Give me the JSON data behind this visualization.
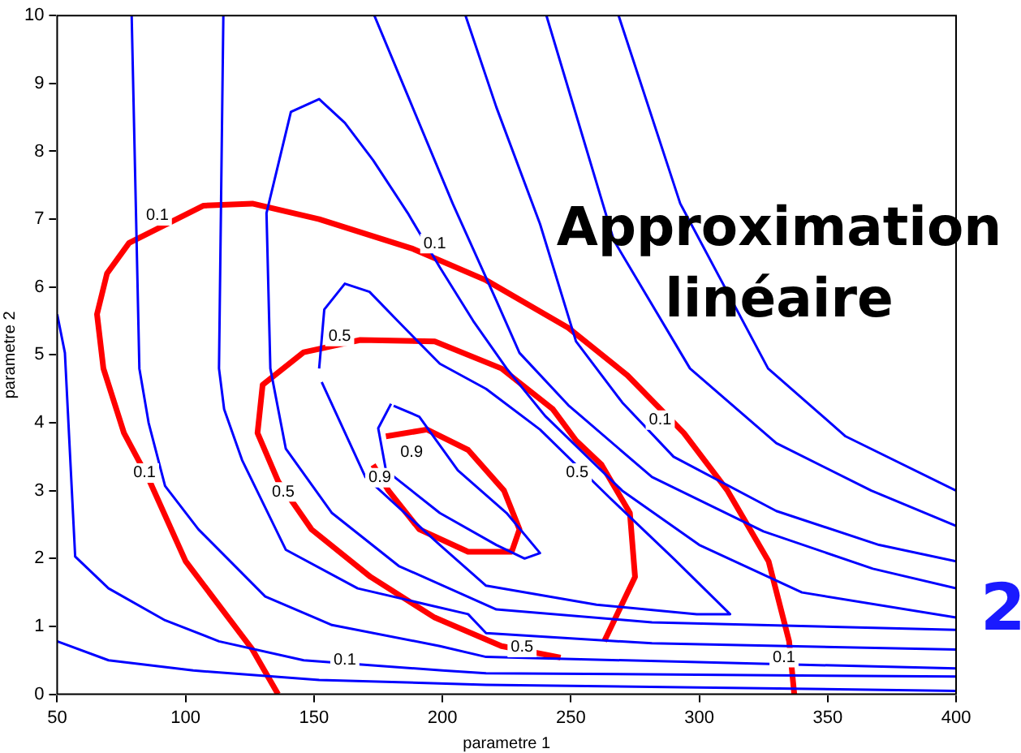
{
  "chart_data": {
    "type": "line",
    "xlabel": "parametre 1",
    "ylabel": "parametre 2",
    "xlim": [
      50,
      400
    ],
    "ylim": [
      0,
      10
    ],
    "xticks": [
      50,
      100,
      150,
      200,
      250,
      300,
      350,
      400
    ],
    "yticks": [
      0,
      1,
      2,
      3,
      4,
      5,
      6,
      7,
      8,
      9,
      10
    ],
    "grid": false,
    "legend": false,
    "marker": "none",
    "line_style": "solid",
    "series": [
      {
        "color": "#0000ff",
        "x": [
          50,
          70,
          103,
          152,
          217,
          400
        ],
        "values": [
          0.78,
          0.5,
          0.35,
          0.21,
          0.14,
          0.05
        ]
      },
      {
        "color": "#0000ff",
        "x": [
          50,
          53,
          57,
          70,
          92,
          113,
          146,
          200,
          217,
          400
        ],
        "values": [
          5.6,
          5.03,
          2.03,
          1.56,
          1.09,
          0.78,
          0.5,
          0.35,
          0.31,
          0.26
        ]
      },
      {
        "color": "#0000ff",
        "x": [
          79,
          82,
          85.6,
          92,
          105,
          131,
          157,
          199,
          217,
          400
        ],
        "values": [
          10,
          4.8,
          4.0,
          3.07,
          2.43,
          1.44,
          1.02,
          0.71,
          0.55,
          0.38
        ]
      },
      {
        "color": "#0000ff",
        "x": [
          114.7,
          113,
          115,
          122,
          139,
          167,
          210,
          217,
          281.6,
          400
        ],
        "values": [
          10,
          4.8,
          4.2,
          3.45,
          2.13,
          1.56,
          1.18,
          0.9,
          0.75,
          0.66
        ]
      },
      {
        "color": "#0000ff",
        "x": [
          400,
          281.6,
          221,
          183,
          157,
          139,
          133,
          131.5,
          141,
          152,
          162,
          173,
          186.5,
          199,
          212,
          225,
          240,
          270,
          300,
          340,
          400
        ],
        "values": [
          0.95,
          1.06,
          1.25,
          1.89,
          2.67,
          3.62,
          4.8,
          7.09,
          8.58,
          8.77,
          8.42,
          7.87,
          7.09,
          6.29,
          5.5,
          4.8,
          4.1,
          3.0,
          2.2,
          1.5,
          1.13
        ]
      },
      {
        "color": "#0000ff",
        "x": [
          173.5,
          186.5,
          204,
          221,
          230,
          249,
          281.6,
          325,
          367.6,
          400
        ],
        "values": [
          10,
          8.82,
          7.23,
          5.8,
          5.03,
          4.26,
          3.2,
          2.4,
          1.85,
          1.56
        ]
      },
      {
        "color": "#0000ff",
        "x": [
          209,
          221,
          238,
          252,
          270,
          290,
          330,
          370,
          400
        ],
        "values": [
          10,
          8.65,
          6.93,
          5.2,
          4.3,
          3.5,
          2.7,
          2.2,
          1.96
        ]
      },
      {
        "color": "#0000ff",
        "x": [
          240.5,
          266.7,
          296.4,
          330,
          367,
          400
        ],
        "values": [
          10,
          6.69,
          4.8,
          3.7,
          3.0,
          2.48
        ]
      },
      {
        "color": "#0000ff",
        "x": [
          268.6,
          292.6,
          326.8,
          357,
          400
        ],
        "values": [
          10,
          7.23,
          4.8,
          3.8,
          3.0
        ]
      },
      {
        "color": "#0000ff",
        "x": [
          152,
          154,
          162,
          171.6,
          182.6,
          199,
          217,
          238,
          265,
          290,
          312,
          299,
          260,
          217,
          199,
          170,
          153
        ],
        "values": [
          4.8,
          5.67,
          6.05,
          5.93,
          5.5,
          4.87,
          4.5,
          3.9,
          2.9,
          2.0,
          1.18,
          1.18,
          1.32,
          1.6,
          2.2,
          3.2,
          4.6
        ]
      },
      {
        "color": "#0000ff",
        "x": [
          180,
          175,
          178,
          199,
          221,
          232,
          238,
          225,
          206,
          191,
          181
        ],
        "values": [
          4.28,
          3.92,
          3.3,
          2.67,
          2.2,
          2.0,
          2.08,
          2.67,
          3.3,
          4.09,
          4.25
        ]
      },
      {
        "color": "#ff0000",
        "x": [
          136,
          126,
          100,
          86,
          76,
          68,
          65.5,
          69.4,
          78,
          107,
          126,
          152,
          188,
          217,
          249,
          272,
          294,
          311,
          327,
          335,
          337
        ],
        "values": [
          0,
          0.66,
          1.96,
          3.14,
          3.85,
          4.8,
          5.6,
          6.2,
          6.65,
          7.2,
          7.23,
          7.0,
          6.57,
          6.1,
          5.4,
          4.7,
          3.85,
          3.0,
          1.96,
          0.78,
          0
        ]
      },
      {
        "color": "#ff0000",
        "x": [
          263,
          275,
          273,
          262,
          252,
          243,
          223,
          197,
          168,
          146,
          130,
          128,
          136,
          149,
          172,
          197,
          223,
          246
        ],
        "values": [
          0.78,
          1.73,
          2.67,
          3.38,
          3.74,
          4.2,
          4.8,
          5.2,
          5.22,
          5.04,
          4.56,
          3.85,
          3.14,
          2.43,
          1.73,
          1.13,
          0.71,
          0.54
        ]
      },
      {
        "color": "#ff0000",
        "x": [
          178,
          194,
          210,
          224,
          230,
          227,
          210,
          191,
          179,
          173
        ],
        "values": [
          3.8,
          3.9,
          3.6,
          3.0,
          2.43,
          2.1,
          2.1,
          2.43,
          3.0,
          3.38
        ]
      }
    ],
    "annotations": [
      "Approximation\nlinéaire",
      "2",
      {
        "text": "0.1",
        "x": 89,
        "y": 7.05
      },
      {
        "text": "0.1",
        "x": 197,
        "y": 6.64
      },
      {
        "text": "0.1",
        "x": 284.8,
        "y": 4.04
      },
      {
        "text": "0.1",
        "x": 84,
        "y": 3.26
      },
      {
        "text": "0.1",
        "x": 162,
        "y": 0.5
      },
      {
        "text": "0.1",
        "x": 333,
        "y": 0.54
      },
      {
        "text": "0.5",
        "x": 160,
        "y": 5.27
      },
      {
        "text": "0.5",
        "x": 138,
        "y": 2.98
      },
      {
        "text": "0.5",
        "x": 252.5,
        "y": 3.26
      },
      {
        "text": "0.5",
        "x": 231,
        "y": 0.69
      },
      {
        "text": "0.9",
        "x": 188,
        "y": 3.57
      },
      {
        "text": "0.9",
        "x": 175.6,
        "y": 3.19
      }
    ]
  }
}
